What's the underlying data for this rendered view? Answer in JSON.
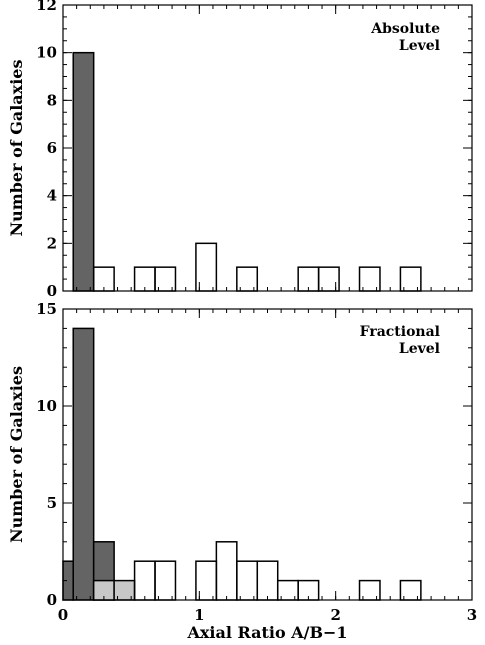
{
  "chart_data": [
    {
      "type": "bar",
      "panel": "top",
      "annotation": [
        "Absolute",
        "Level"
      ],
      "ylabel": "Number of Galaxies",
      "xlabel": "",
      "xlim": [
        0,
        3
      ],
      "ylim": [
        0,
        12
      ],
      "yticks": [
        0,
        2,
        4,
        6,
        8,
        10,
        12
      ],
      "xticks": [],
      "bin_width": 0.15,
      "series": [
        {
          "style": "dark-filled",
          "color": "#646464",
          "bins": [
            {
              "x0": 0.075,
              "value": 10
            }
          ]
        },
        {
          "style": "outline",
          "color": "#000000",
          "bins": [
            {
              "x0": 0.225,
              "value": 1
            },
            {
              "x0": 0.525,
              "value": 1
            },
            {
              "x0": 0.675,
              "value": 1
            },
            {
              "x0": 0.975,
              "value": 2
            },
            {
              "x0": 1.275,
              "value": 1
            },
            {
              "x0": 1.725,
              "value": 1
            },
            {
              "x0": 1.875,
              "value": 1
            },
            {
              "x0": 2.175,
              "value": 1
            },
            {
              "x0": 2.475,
              "value": 1
            }
          ]
        }
      ]
    },
    {
      "type": "bar",
      "panel": "bottom",
      "annotation": [
        "Fractional",
        "Level"
      ],
      "ylabel": "Number of Galaxies",
      "xlabel": "Axial Ratio A/B−1",
      "xlim": [
        0,
        3
      ],
      "ylim": [
        0,
        15
      ],
      "yticks": [
        0,
        5,
        10,
        15
      ],
      "xticks": [
        0,
        1,
        2,
        3
      ],
      "bin_width": 0.15,
      "series": [
        {
          "style": "dark-filled",
          "color": "#646464",
          "bins": [
            {
              "x0": -0.075,
              "value": 2
            },
            {
              "x0": 0.075,
              "value": 14
            },
            {
              "x0": 0.225,
              "value": 3
            }
          ]
        },
        {
          "style": "light-filled",
          "color": "#c8c8c8",
          "bins": [
            {
              "x0": 0.225,
              "value": 1
            },
            {
              "x0": 0.375,
              "value": 1
            }
          ]
        },
        {
          "style": "outline",
          "color": "#000000",
          "bins": [
            {
              "x0": 0.525,
              "value": 2
            },
            {
              "x0": 0.675,
              "value": 2
            },
            {
              "x0": 0.975,
              "value": 2
            },
            {
              "x0": 1.125,
              "value": 3
            },
            {
              "x0": 1.275,
              "value": 2
            },
            {
              "x0": 1.425,
              "value": 2
            },
            {
              "x0": 1.575,
              "value": 1
            },
            {
              "x0": 1.725,
              "value": 1
            },
            {
              "x0": 2.175,
              "value": 1
            },
            {
              "x0": 2.475,
              "value": 1
            }
          ]
        }
      ]
    }
  ]
}
